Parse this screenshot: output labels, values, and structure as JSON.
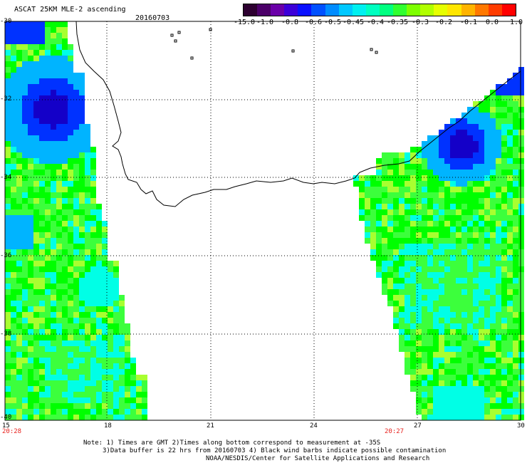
{
  "title": "ASCAT 25KM MLE-2 ascending",
  "date": "20160703",
  "colorbar": {
    "labels": [
      "-15.0",
      "-1.0",
      "-0.8",
      "-0.6",
      "-0.5",
      "-0.45",
      "-0.4",
      "-0.35",
      "-0.3",
      "-0.2",
      "-0.1",
      "0.0",
      "1.0"
    ],
    "colors": [
      "#2d0030",
      "#4b0068",
      "#6a00a8",
      "#3c00d8",
      "#0a10ff",
      "#0050ff",
      "#008cff",
      "#00c8ff",
      "#00f0f0",
      "#00ffc0",
      "#00ff80",
      "#30ff30",
      "#7dff00",
      "#b0ff00",
      "#e6ff00",
      "#ffe600",
      "#ffb400",
      "#ff7800",
      "#ff3c00",
      "#ff0000"
    ]
  },
  "axes": {
    "lat_labels": [
      "-30",
      "-32",
      "-34",
      "-36",
      "-38",
      "-40"
    ],
    "lon_labels": [
      "15",
      "18",
      "21",
      "24",
      "27",
      "30"
    ]
  },
  "times": {
    "left": "20:28",
    "right": "20:27"
  },
  "notes": [
    "Note: 1) Times are GMT 2)Times along bottom correspond to measurement at -35S",
    "3)Data buffer is 22 hrs from 20160703 4) Black wind barbs indicate possible contamination",
    "NOAA/NESDIS/Center for Satellite Applications and Research"
  ],
  "map": {
    "colors": {
      "green": "#3cff3c",
      "bright_green": "#00ff00",
      "yellowgreen": "#a8ff30",
      "cyan": "#00ffe6",
      "lightblue": "#00b4ff",
      "blue": "#0032ff",
      "darkblue": "#1400c8",
      "coast": "#000000"
    }
  }
}
